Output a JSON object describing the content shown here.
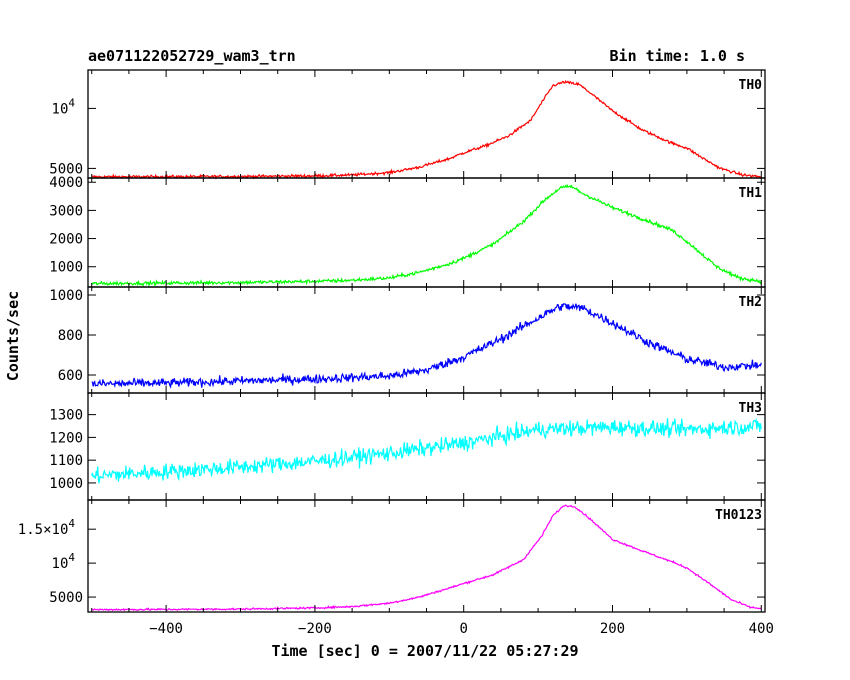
{
  "header": {
    "left": "ae071122052729_wam3_trn",
    "right": "Bin time: 1.0 s"
  },
  "chart_data": {
    "type": "line",
    "title": "ae071122052729_wam3_trn",
    "bin_time_label": "Bin time: 1.0 s",
    "xlabel": "Time [sec] 0 = 2007/11/22 05:27:29",
    "ylabel": "Counts/sec",
    "xlim": [
      -505,
      405
    ],
    "x_ticks": [
      -400,
      -200,
      0,
      200,
      400
    ],
    "grid": false,
    "panels": [
      {
        "name": "TH0",
        "color": "#ff0000",
        "ylim": [
          4200,
          13200
        ],
        "y_ticks": [
          {
            "v": 5000,
            "base": "5000"
          },
          {
            "v": 10000,
            "base": "10",
            "exp": "4"
          }
        ],
        "points": [
          [
            -500,
            4300
          ],
          [
            -400,
            4310
          ],
          [
            -300,
            4330
          ],
          [
            -200,
            4380
          ],
          [
            -150,
            4450
          ],
          [
            -100,
            4650
          ],
          [
            -60,
            5100
          ],
          [
            -20,
            5800
          ],
          [
            0,
            6300
          ],
          [
            30,
            6900
          ],
          [
            60,
            7700
          ],
          [
            90,
            9000
          ],
          [
            105,
            10500
          ],
          [
            120,
            11900
          ],
          [
            135,
            12200
          ],
          [
            155,
            12000
          ],
          [
            170,
            11300
          ],
          [
            200,
            9800
          ],
          [
            240,
            8200
          ],
          [
            280,
            7100
          ],
          [
            300,
            6700
          ],
          [
            320,
            5900
          ],
          [
            345,
            5000
          ],
          [
            375,
            4450
          ],
          [
            400,
            4300
          ]
        ],
        "noise": 110
      },
      {
        "name": "TH1",
        "color": "#00ff00",
        "ylim": [
          280,
          4150
        ],
        "y_ticks": [
          {
            "v": 1000,
            "base": "1000"
          },
          {
            "v": 2000,
            "base": "2000"
          },
          {
            "v": 3000,
            "base": "3000"
          },
          {
            "v": 4000,
            "base": "4000"
          }
        ],
        "points": [
          [
            -500,
            400
          ],
          [
            -400,
            420
          ],
          [
            -300,
            440
          ],
          [
            -200,
            480
          ],
          [
            -150,
            520
          ],
          [
            -100,
            600
          ],
          [
            -60,
            800
          ],
          [
            -20,
            1100
          ],
          [
            0,
            1300
          ],
          [
            40,
            1800
          ],
          [
            80,
            2600
          ],
          [
            110,
            3400
          ],
          [
            130,
            3800
          ],
          [
            145,
            3850
          ],
          [
            160,
            3600
          ],
          [
            200,
            3100
          ],
          [
            240,
            2700
          ],
          [
            280,
            2300
          ],
          [
            300,
            1900
          ],
          [
            340,
            1000
          ],
          [
            370,
            600
          ],
          [
            400,
            480
          ]
        ],
        "noise": 60
      },
      {
        "name": "TH2",
        "color": "#0000ff",
        "ylim": [
          510,
          1040
        ],
        "y_ticks": [
          {
            "v": 600,
            "base": "600"
          },
          {
            "v": 800,
            "base": "800"
          },
          {
            "v": 1000,
            "base": "1000"
          }
        ],
        "points": [
          [
            -500,
            555
          ],
          [
            -400,
            560
          ],
          [
            -300,
            570
          ],
          [
            -200,
            580
          ],
          [
            -100,
            595
          ],
          [
            -50,
            625
          ],
          [
            0,
            690
          ],
          [
            50,
            780
          ],
          [
            100,
            885
          ],
          [
            130,
            945
          ],
          [
            160,
            935
          ],
          [
            200,
            860
          ],
          [
            250,
            760
          ],
          [
            300,
            680
          ],
          [
            350,
            640
          ],
          [
            400,
            650
          ]
        ],
        "noise": 22
      },
      {
        "name": "TH3",
        "color": "#00ffff",
        "ylim": [
          925,
          1395
        ],
        "y_ticks": [
          {
            "v": 1000,
            "base": "1000"
          },
          {
            "v": 1100,
            "base": "1100"
          },
          {
            "v": 1200,
            "base": "1200"
          },
          {
            "v": 1300,
            "base": "1300"
          }
        ],
        "points": [
          [
            -500,
            1030
          ],
          [
            -400,
            1050
          ],
          [
            -300,
            1070
          ],
          [
            -200,
            1095
          ],
          [
            -100,
            1130
          ],
          [
            0,
            1175
          ],
          [
            100,
            1235
          ],
          [
            200,
            1245
          ],
          [
            300,
            1235
          ],
          [
            400,
            1250
          ]
        ],
        "noise": 35
      },
      {
        "name": "TH0123",
        "color": "#ff00ff",
        "ylim": [
          2800,
          19300
        ],
        "y_ticks": [
          {
            "v": 5000,
            "base": "5000"
          },
          {
            "v": 10000,
            "base": "10",
            "exp": "4"
          },
          {
            "v": 15000,
            "base": "1.5×10",
            "exp": "4"
          }
        ],
        "points": [
          [
            -500,
            3150
          ],
          [
            -400,
            3180
          ],
          [
            -300,
            3230
          ],
          [
            -200,
            3400
          ],
          [
            -150,
            3600
          ],
          [
            -100,
            4100
          ],
          [
            -60,
            5000
          ],
          [
            -20,
            6300
          ],
          [
            0,
            7000
          ],
          [
            40,
            8300
          ],
          [
            80,
            10500
          ],
          [
            105,
            14000
          ],
          [
            120,
            17000
          ],
          [
            135,
            18500
          ],
          [
            150,
            18300
          ],
          [
            170,
            16500
          ],
          [
            200,
            13500
          ],
          [
            240,
            11800
          ],
          [
            280,
            10200
          ],
          [
            300,
            9300
          ],
          [
            330,
            7000
          ],
          [
            360,
            4600
          ],
          [
            385,
            3500
          ],
          [
            400,
            3300
          ]
        ],
        "noise": 130
      }
    ]
  }
}
